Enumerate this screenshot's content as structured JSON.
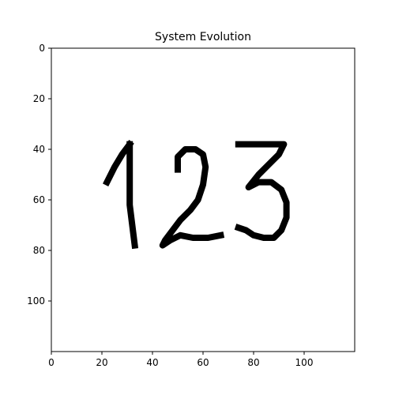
{
  "chart_data": {
    "type": "heatmap",
    "title": "System Evolution",
    "xlabel": "",
    "ylabel": "",
    "xlim": [
      0,
      120
    ],
    "ylim": [
      120,
      0
    ],
    "x_ticks": [
      0,
      20,
      40,
      60,
      80,
      100
    ],
    "y_ticks": [
      0,
      20,
      40,
      60,
      80,
      100
    ],
    "grid": false,
    "colormap": {
      "background": "#ffffff",
      "foreground": "#000000"
    },
    "depicted_text": "123",
    "strokes": [
      {
        "name": "digit-1-upstroke",
        "points": [
          [
            22,
            53
          ],
          [
            25,
            47
          ],
          [
            28,
            42
          ],
          [
            31,
            38
          ]
        ]
      },
      {
        "name": "digit-1-stem",
        "points": [
          [
            31,
            38
          ],
          [
            31,
            50
          ],
          [
            31,
            62
          ],
          [
            32,
            70
          ],
          [
            33,
            78
          ]
        ]
      },
      {
        "name": "digit-2",
        "points": [
          [
            50,
            48
          ],
          [
            50,
            43
          ],
          [
            53,
            40
          ],
          [
            57,
            40
          ],
          [
            60,
            42
          ],
          [
            61,
            47
          ],
          [
            60,
            54
          ],
          [
            58,
            60
          ],
          [
            55,
            64
          ],
          [
            51,
            68
          ],
          [
            48,
            72
          ],
          [
            45,
            76
          ],
          [
            44,
            78
          ],
          [
            47,
            76
          ],
          [
            51,
            74
          ],
          [
            56,
            75
          ],
          [
            62,
            75
          ],
          [
            67,
            74
          ]
        ]
      },
      {
        "name": "digit-3",
        "points": [
          [
            74,
            38
          ],
          [
            80,
            38
          ],
          [
            86,
            38
          ],
          [
            92,
            38
          ],
          [
            90,
            42
          ],
          [
            86,
            46
          ],
          [
            82,
            50
          ],
          [
            78,
            55
          ],
          [
            82,
            53
          ],
          [
            87,
            53
          ],
          [
            91,
            56
          ],
          [
            93,
            61
          ],
          [
            93,
            67
          ],
          [
            91,
            72
          ],
          [
            88,
            75
          ],
          [
            84,
            75
          ],
          [
            80,
            74
          ],
          [
            77,
            72
          ],
          [
            74,
            71
          ]
        ]
      }
    ]
  }
}
